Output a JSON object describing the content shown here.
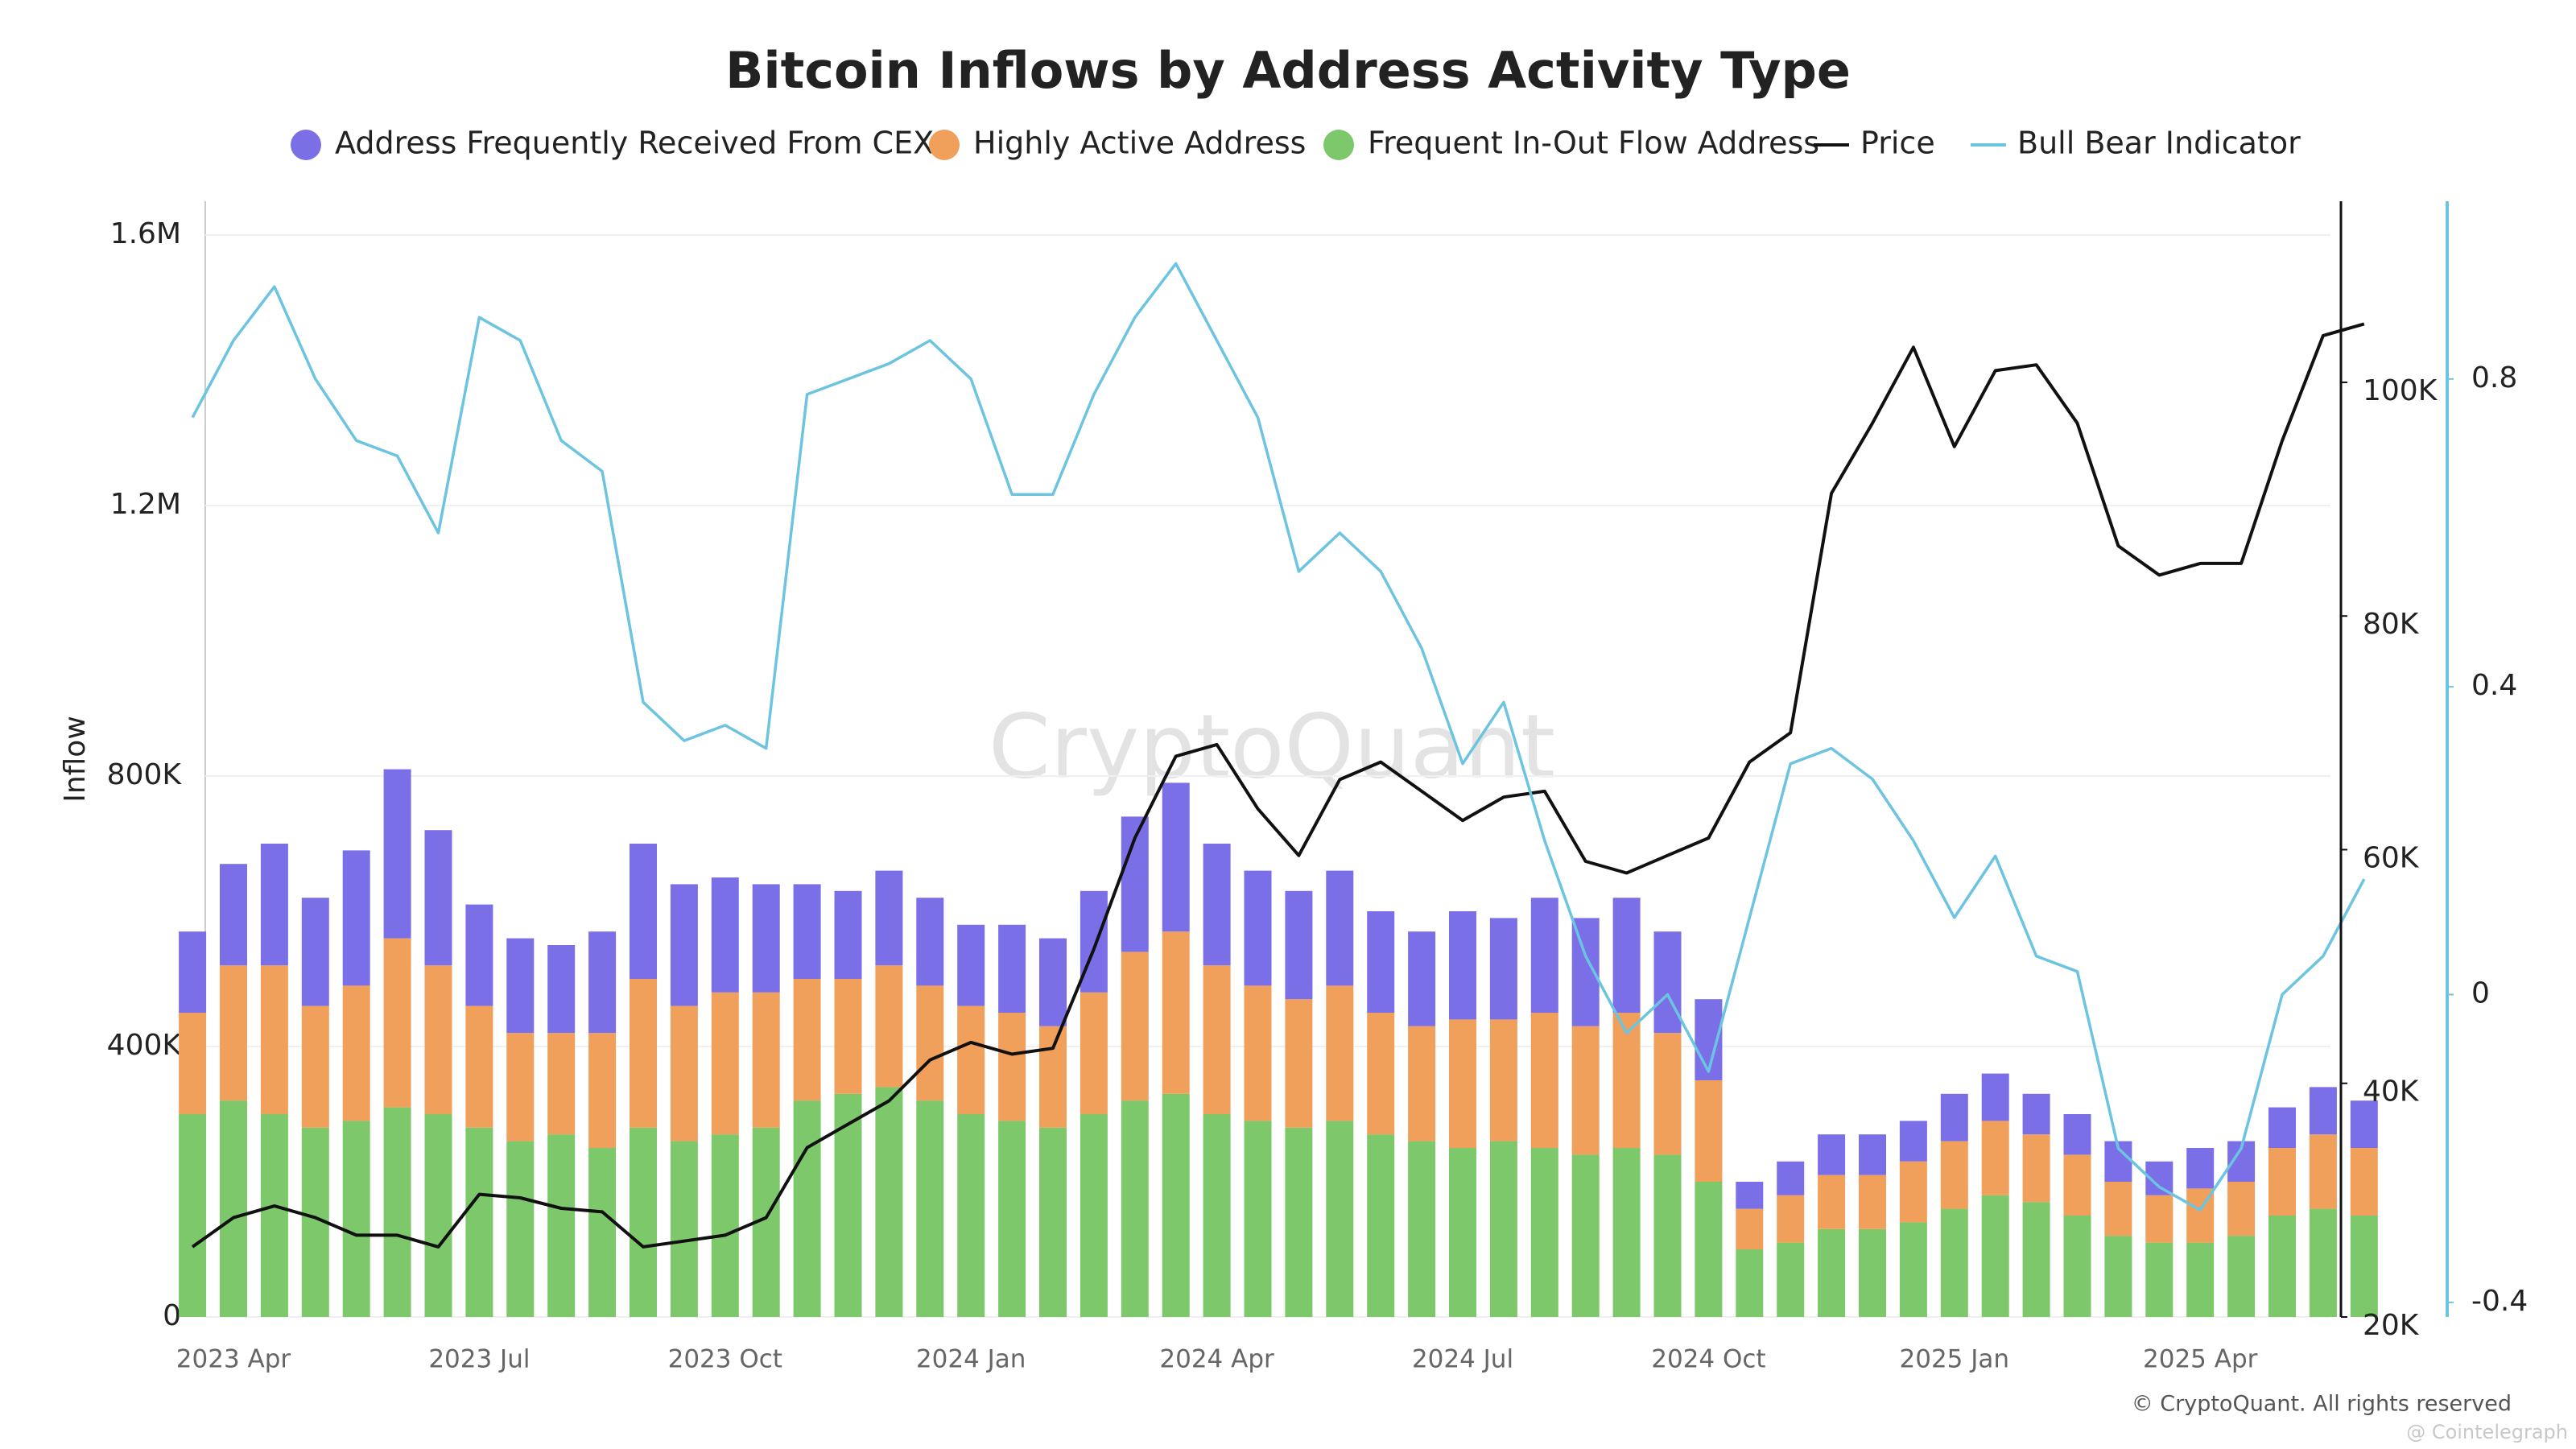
{
  "chart_data": {
    "type": "stacked-bar-line",
    "title": "Bitcoin Inflows by Address Activity Type",
    "ylabel": "Inflow",
    "watermark": "CryptoQuant",
    "source": "© CryptoQuant. All rights reserved",
    "credit": "@ Cointelegraph",
    "grid": true,
    "categories": [
      null,
      "2023 Apr",
      null,
      null,
      null,
      null,
      null,
      "2023 Jul",
      null,
      null,
      null,
      null,
      null,
      "2023 Oct",
      null,
      null,
      null,
      null,
      null,
      "2024 Jan",
      null,
      null,
      null,
      null,
      null,
      "2024 Apr",
      null,
      null,
      null,
      null,
      null,
      "2024 Jul",
      null,
      null,
      null,
      null,
      null,
      "2024 Oct",
      null,
      null,
      null,
      null,
      null,
      "2025 Jan",
      null,
      null,
      null,
      null,
      null,
      "2025 Apr",
      null,
      null,
      null,
      null
    ],
    "ylim": [
      0,
      1650000
    ],
    "yticks": [
      0,
      {
        "value": 400000,
        "label": "400K"
      },
      {
        "value": 800000,
        "label": "800K"
      },
      {
        "value": 1200000,
        "label": "1.2M"
      },
      {
        "value": 1600000,
        "label": "1.6M"
      }
    ],
    "y2lim": [
      20000,
      115500
    ],
    "y2ticks": [
      {
        "value": 20000,
        "label": "20K"
      },
      {
        "value": 40000,
        "label": "40K"
      },
      {
        "value": 60000,
        "label": "60K"
      },
      {
        "value": 80000,
        "label": "80K"
      },
      {
        "value": 100000,
        "label": "100K"
      }
    ],
    "y3lim": [
      -0.419,
      1.031
    ],
    "y3ticks": [
      -0.4,
      0,
      0.4,
      0.8
    ],
    "series": [
      {
        "name": "Address Frequently Received From CEX",
        "kind": "bar",
        "color": "#7b6fe8",
        "values": [
          120000,
          150000,
          180000,
          160000,
          200000,
          250000,
          200000,
          150000,
          140000,
          130000,
          150000,
          200000,
          180000,
          170000,
          160000,
          140000,
          130000,
          140000,
          130000,
          120000,
          130000,
          130000,
          150000,
          200000,
          220000,
          180000,
          170000,
          160000,
          170000,
          150000,
          140000,
          160000,
          150000,
          170000,
          160000,
          170000,
          150000,
          120000,
          40000,
          50000,
          60000,
          60000,
          60000,
          70000,
          70000,
          60000,
          60000,
          60000,
          50000,
          60000,
          60000,
          60000,
          70000,
          70000
        ]
      },
      {
        "name": "Highly Active Address",
        "kind": "bar",
        "color": "#f0a05a",
        "values": [
          150000,
          200000,
          220000,
          180000,
          200000,
          250000,
          220000,
          180000,
          160000,
          150000,
          170000,
          220000,
          200000,
          210000,
          200000,
          180000,
          170000,
          180000,
          170000,
          160000,
          160000,
          150000,
          180000,
          220000,
          240000,
          220000,
          200000,
          190000,
          200000,
          180000,
          170000,
          190000,
          180000,
          200000,
          190000,
          200000,
          180000,
          150000,
          60000,
          70000,
          80000,
          80000,
          90000,
          100000,
          110000,
          100000,
          90000,
          80000,
          70000,
          80000,
          80000,
          100000,
          110000,
          100000
        ]
      },
      {
        "name": "Frequent In-Out Flow Address",
        "kind": "bar",
        "color": "#7cc86a",
        "values": [
          300000,
          320000,
          300000,
          280000,
          290000,
          310000,
          300000,
          280000,
          260000,
          270000,
          250000,
          280000,
          260000,
          270000,
          280000,
          320000,
          330000,
          340000,
          320000,
          300000,
          290000,
          280000,
          300000,
          320000,
          330000,
          300000,
          290000,
          280000,
          290000,
          270000,
          260000,
          250000,
          260000,
          250000,
          240000,
          250000,
          240000,
          200000,
          100000,
          110000,
          130000,
          130000,
          140000,
          160000,
          180000,
          170000,
          150000,
          120000,
          110000,
          110000,
          120000,
          150000,
          160000,
          150000
        ]
      },
      {
        "name": "Price",
        "kind": "line",
        "axis": "y2",
        "color": "#111111",
        "values": [
          26000,
          28500,
          29500,
          28500,
          27000,
          27000,
          26000,
          30500,
          30200,
          29300,
          29000,
          26000,
          26500,
          27000,
          28500,
          34500,
          36500,
          38500,
          42000,
          43500,
          42500,
          43000,
          51500,
          61000,
          68000,
          69000,
          63500,
          59500,
          66000,
          67500,
          65000,
          62500,
          64500,
          65000,
          59000,
          58000,
          59500,
          61000,
          67500,
          70000,
          90500,
          96500,
          103000,
          94500,
          101000,
          101500,
          96500,
          86000,
          83500,
          84500,
          84500,
          95000,
          104000,
          105000
        ]
      },
      {
        "name": "Bull Bear Indicator",
        "kind": "line",
        "axis": "y3",
        "color": "#6cc4e0",
        "values": [
          0.75,
          0.85,
          0.92,
          0.8,
          0.72,
          0.7,
          0.6,
          0.88,
          0.85,
          0.72,
          0.68,
          0.38,
          0.33,
          0.35,
          0.32,
          0.78,
          0.8,
          0.82,
          0.85,
          0.8,
          0.65,
          0.65,
          0.78,
          0.88,
          0.95,
          0.85,
          0.75,
          0.55,
          0.6,
          0.55,
          0.45,
          0.3,
          0.38,
          0.2,
          0.05,
          -0.05,
          0,
          -0.1,
          0.1,
          0.3,
          0.32,
          0.28,
          0.2,
          0.1,
          0.18,
          0.05,
          0.03,
          -0.2,
          -0.25,
          -0.28,
          -0.2,
          0,
          0.05,
          0.15
        ]
      }
    ]
  }
}
